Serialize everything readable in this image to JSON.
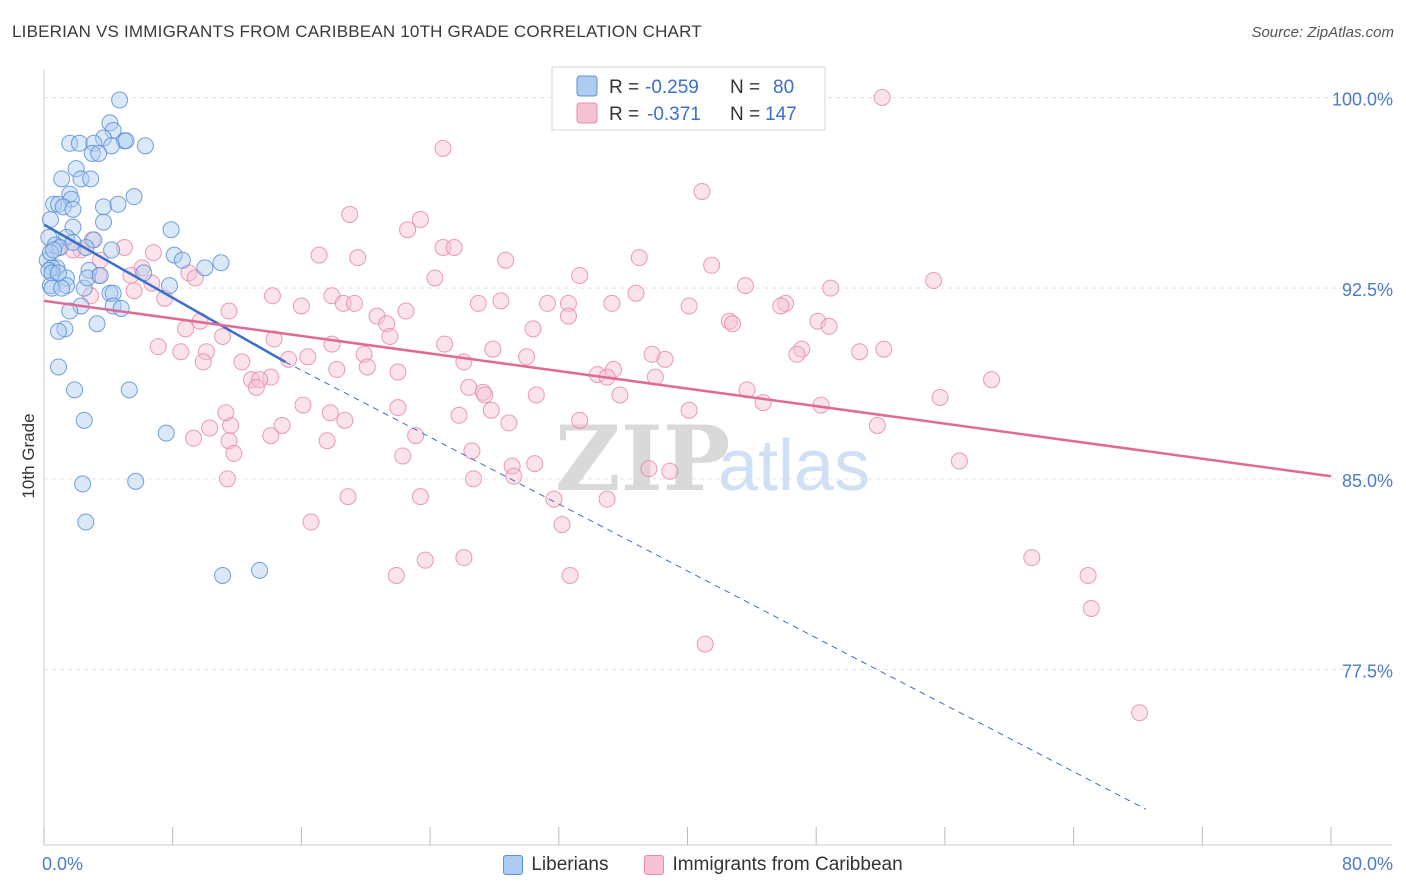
{
  "title": "LIBERIAN VS IMMIGRANTS FROM CARIBBEAN 10TH GRADE CORRELATION CHART",
  "source": "Source: ZipAtlas.com",
  "watermark": {
    "zip": "ZIP",
    "atlas": "atlas"
  },
  "colors": {
    "blue": "#5b8fd6",
    "blue_fill": "#aecbf0",
    "blue_line": "#3a6fcc",
    "pink": "#e88aa8",
    "pink_fill": "#f6c2d3",
    "pink_line": "#e06a95",
    "tick_label": "#4a7cc9",
    "grid": "#e3e3e3"
  },
  "legend": {
    "rows": [
      {
        "r_label": "R =",
        "r_value": "-0.259",
        "n_label": "N =",
        "n_value": "80"
      },
      {
        "r_label": "R =",
        "r_value": "-0.371",
        "n_label": "N =",
        "n_value": "147"
      }
    ]
  },
  "chart_data": {
    "type": "scatter",
    "title": "LIBERIAN VS IMMIGRANTS FROM CARIBBEAN 10TH GRADE CORRELATION CHART",
    "xlabel": "",
    "ylabel": "10th Grade",
    "xlim": [
      0,
      80
    ],
    "ylim": [
      72,
      100.5
    ],
    "x_tick_labels": [
      "0.0%",
      "80.0%"
    ],
    "y_ticks": [
      77.5,
      85.0,
      92.5,
      100.0
    ],
    "y_tick_labels": [
      "77.5%",
      "85.0%",
      "92.5%",
      "100.0%"
    ],
    "grid": "horizontal dashed",
    "legend_placement": "top-center",
    "series": [
      {
        "name": "Liberians",
        "color": "#5b8fd6",
        "R": -0.259,
        "N": 80,
        "trend": {
          "x0": 0,
          "y0": 95.0,
          "x1": 15,
          "y1": 89.6,
          "dashed_to": {
            "x": 68.5,
            "y": 72
          }
        },
        "points": [
          [
            4.7,
            99.9
          ],
          [
            4.1,
            99.0
          ],
          [
            4.3,
            98.7
          ],
          [
            3.7,
            98.4
          ],
          [
            5.0,
            98.3
          ],
          [
            5.1,
            98.3
          ],
          [
            1.6,
            98.2
          ],
          [
            2.2,
            98.2
          ],
          [
            6.3,
            98.1
          ],
          [
            3.1,
            98.2
          ],
          [
            4.2,
            98.1
          ],
          [
            3.0,
            97.8
          ],
          [
            3.4,
            97.8
          ],
          [
            2.0,
            97.2
          ],
          [
            2.3,
            96.8
          ],
          [
            2.9,
            96.8
          ],
          [
            1.1,
            96.8
          ],
          [
            1.6,
            96.2
          ],
          [
            5.6,
            96.1
          ],
          [
            1.7,
            96.0
          ],
          [
            0.6,
            95.8
          ],
          [
            0.9,
            95.8
          ],
          [
            1.2,
            95.7
          ],
          [
            3.7,
            95.7
          ],
          [
            4.6,
            95.8
          ],
          [
            1.8,
            95.6
          ],
          [
            0.4,
            95.2
          ],
          [
            3.7,
            95.1
          ],
          [
            1.8,
            94.9
          ],
          [
            7.9,
            94.8
          ],
          [
            0.3,
            94.5
          ],
          [
            1.4,
            94.5
          ],
          [
            3.1,
            94.4
          ],
          [
            0.7,
            94.2
          ],
          [
            2.6,
            94.1
          ],
          [
            1.0,
            94.1
          ],
          [
            4.2,
            94.0
          ],
          [
            8.1,
            93.8
          ],
          [
            8.6,
            93.6
          ],
          [
            0.2,
            93.6
          ],
          [
            11.0,
            93.5
          ],
          [
            0.8,
            93.3
          ],
          [
            0.5,
            93.3
          ],
          [
            10.0,
            93.3
          ],
          [
            0.3,
            93.2
          ],
          [
            2.8,
            93.2
          ],
          [
            0.5,
            93.1
          ],
          [
            1.4,
            92.9
          ],
          [
            1.4,
            92.6
          ],
          [
            0.4,
            92.6
          ],
          [
            7.8,
            92.6
          ],
          [
            2.5,
            92.5
          ],
          [
            0.5,
            92.5
          ],
          [
            1.1,
            92.5
          ],
          [
            4.1,
            92.3
          ],
          [
            4.3,
            92.3
          ],
          [
            2.3,
            91.8
          ],
          [
            4.3,
            91.8
          ],
          [
            4.8,
            91.7
          ],
          [
            1.6,
            91.6
          ],
          [
            3.3,
            91.1
          ],
          [
            1.3,
            90.9
          ],
          [
            0.9,
            90.8
          ],
          [
            0.9,
            89.4
          ],
          [
            1.9,
            88.5
          ],
          [
            5.3,
            88.5
          ],
          [
            2.5,
            87.3
          ],
          [
            7.6,
            86.8
          ],
          [
            2.4,
            84.8
          ],
          [
            5.7,
            84.9
          ],
          [
            2.6,
            83.3
          ],
          [
            11.1,
            81.2
          ],
          [
            13.4,
            81.4
          ],
          [
            2.7,
            92.9
          ],
          [
            0.9,
            93.1
          ],
          [
            3.5,
            93.0
          ],
          [
            6.2,
            93.1
          ],
          [
            0.4,
            93.9
          ],
          [
            1.8,
            94.3
          ],
          [
            0.6,
            94.0
          ]
        ]
      },
      {
        "name": "Immigrants from Caribbean",
        "color": "#e88aa8",
        "R": -0.371,
        "N": 147,
        "trend": {
          "x0": 0,
          "y0": 92.0,
          "x1": 80,
          "y1": 85.1
        },
        "points": [
          [
            52.1,
            100.0
          ],
          [
            24.8,
            98.0
          ],
          [
            40.9,
            96.3
          ],
          [
            19.0,
            95.4
          ],
          [
            23.4,
            95.2
          ],
          [
            22.6,
            94.8
          ],
          [
            3.0,
            94.4
          ],
          [
            5.0,
            94.1
          ],
          [
            0.9,
            94.1
          ],
          [
            2.3,
            94.0
          ],
          [
            1.8,
            94.0
          ],
          [
            24.8,
            94.1
          ],
          [
            25.5,
            94.1
          ],
          [
            6.8,
            93.9
          ],
          [
            17.1,
            93.8
          ],
          [
            37.0,
            93.7
          ],
          [
            3.5,
            93.6
          ],
          [
            28.7,
            93.6
          ],
          [
            41.5,
            93.4
          ],
          [
            6.1,
            93.3
          ],
          [
            9.0,
            93.1
          ],
          [
            3.4,
            93.0
          ],
          [
            5.4,
            93.0
          ],
          [
            9.4,
            92.9
          ],
          [
            24.3,
            92.9
          ],
          [
            33.3,
            93.0
          ],
          [
            55.3,
            92.8
          ],
          [
            6.7,
            92.7
          ],
          [
            43.6,
            92.6
          ],
          [
            48.9,
            92.5
          ],
          [
            5.6,
            92.4
          ],
          [
            36.8,
            92.3
          ],
          [
            14.2,
            92.2
          ],
          [
            17.9,
            92.2
          ],
          [
            2.9,
            92.2
          ],
          [
            7.5,
            92.1
          ],
          [
            18.6,
            91.9
          ],
          [
            19.3,
            91.9
          ],
          [
            27.0,
            91.9
          ],
          [
            31.3,
            91.9
          ],
          [
            32.6,
            91.9
          ],
          [
            35.3,
            91.9
          ],
          [
            46.1,
            91.9
          ],
          [
            40.1,
            91.8
          ],
          [
            45.8,
            91.8
          ],
          [
            16.0,
            91.8
          ],
          [
            11.5,
            91.6
          ],
          [
            22.5,
            91.6
          ],
          [
            20.7,
            91.4
          ],
          [
            32.6,
            91.4
          ],
          [
            9.7,
            91.2
          ],
          [
            21.3,
            91.1
          ],
          [
            42.6,
            91.2
          ],
          [
            42.8,
            91.1
          ],
          [
            48.1,
            91.2
          ],
          [
            48.8,
            91.0
          ],
          [
            30.4,
            90.9
          ],
          [
            8.8,
            90.9
          ],
          [
            21.5,
            90.6
          ],
          [
            11.1,
            90.6
          ],
          [
            14.3,
            90.5
          ],
          [
            17.9,
            90.3
          ],
          [
            24.9,
            90.3
          ],
          [
            27.9,
            90.1
          ],
          [
            50.7,
            90.0
          ],
          [
            47.1,
            90.1
          ],
          [
            46.8,
            89.9
          ],
          [
            7.1,
            90.2
          ],
          [
            8.5,
            90.0
          ],
          [
            10.1,
            90.0
          ],
          [
            19.9,
            89.9
          ],
          [
            37.8,
            89.9
          ],
          [
            38.6,
            89.7
          ],
          [
            30.0,
            89.8
          ],
          [
            16.4,
            89.8
          ],
          [
            15.2,
            89.7
          ],
          [
            9.9,
            89.6
          ],
          [
            12.3,
            89.6
          ],
          [
            26.1,
            89.6
          ],
          [
            20.1,
            89.4
          ],
          [
            35.4,
            89.3
          ],
          [
            22.0,
            89.2
          ],
          [
            18.2,
            89.3
          ],
          [
            34.4,
            89.1
          ],
          [
            35.0,
            89.0
          ],
          [
            38.0,
            89.0
          ],
          [
            14.1,
            89.0
          ],
          [
            12.9,
            88.9
          ],
          [
            13.4,
            88.9
          ],
          [
            58.9,
            88.9
          ],
          [
            26.4,
            88.6
          ],
          [
            27.3,
            88.4
          ],
          [
            30.6,
            88.3
          ],
          [
            35.8,
            88.3
          ],
          [
            55.7,
            88.2
          ],
          [
            44.7,
            88.0
          ],
          [
            48.3,
            87.9
          ],
          [
            16.1,
            87.9
          ],
          [
            22.0,
            87.8
          ],
          [
            27.8,
            87.7
          ],
          [
            17.8,
            87.6
          ],
          [
            25.8,
            87.5
          ],
          [
            33.3,
            87.3
          ],
          [
            28.9,
            87.2
          ],
          [
            11.6,
            87.1
          ],
          [
            14.8,
            87.1
          ],
          [
            10.3,
            87.0
          ],
          [
            51.8,
            87.1
          ],
          [
            23.1,
            86.7
          ],
          [
            14.1,
            86.7
          ],
          [
            9.3,
            86.6
          ],
          [
            17.6,
            86.5
          ],
          [
            11.5,
            86.5
          ],
          [
            26.6,
            86.1
          ],
          [
            11.8,
            86.0
          ],
          [
            22.3,
            85.9
          ],
          [
            56.9,
            85.7
          ],
          [
            30.5,
            85.6
          ],
          [
            29.1,
            85.5
          ],
          [
            37.6,
            85.4
          ],
          [
            38.9,
            85.3
          ],
          [
            29.2,
            85.1
          ],
          [
            11.4,
            85.0
          ],
          [
            26.7,
            85.0
          ],
          [
            18.9,
            84.3
          ],
          [
            23.4,
            84.3
          ],
          [
            31.7,
            84.2
          ],
          [
            35.0,
            84.2
          ],
          [
            16.6,
            83.3
          ],
          [
            32.2,
            83.2
          ],
          [
            26.1,
            81.9
          ],
          [
            23.7,
            81.8
          ],
          [
            61.4,
            81.9
          ],
          [
            21.9,
            81.2
          ],
          [
            32.7,
            81.2
          ],
          [
            64.9,
            81.2
          ],
          [
            41.1,
            78.5
          ],
          [
            65.1,
            79.9
          ],
          [
            68.1,
            75.8
          ],
          [
            11.3,
            87.6
          ],
          [
            13.2,
            88.6
          ],
          [
            18.7,
            87.3
          ],
          [
            27.4,
            88.3
          ],
          [
            43.7,
            88.5
          ],
          [
            40.1,
            87.7
          ],
          [
            52.2,
            90.1
          ],
          [
            19.5,
            93.7
          ],
          [
            28.4,
            92.0
          ]
        ]
      }
    ]
  }
}
